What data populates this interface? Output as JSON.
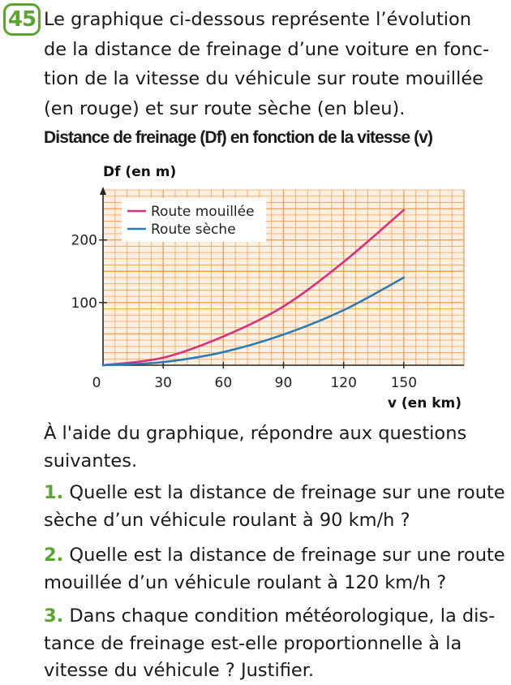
{
  "exercise": {
    "number": "45",
    "intro_lines": [
      "Le graphique ci-dessous représente l’évolution",
      "de la distance de freinage d’une voiture en fonc-",
      "tion de la vitesse du véhicule sur route mouillée",
      "(en rouge) et sur route sèche (en bleu)."
    ],
    "chart_title": "Distance de freinage (Df) en fonction de la vitesse (v)",
    "instruction_lines": [
      "À l'aide du graphique, répondre aux questions",
      "suivantes."
    ],
    "questions": [
      {
        "num": "1.",
        "lines": [
          "Quelle est la distance de freinage sur une route",
          "sèche d’un véhicule roulant à 90 km/h ?"
        ]
      },
      {
        "num": "2.",
        "lines": [
          "Quelle est la distance de freinage sur une route",
          "mouillée d’un véhicule roulant à 120 km/h ?"
        ]
      },
      {
        "num": "3.",
        "lines": [
          "Dans chaque condition météorologique, la dis-",
          "tance de freinage est-elle proportionnelle à la",
          "vitesse du véhicule ? Justifier."
        ]
      }
    ]
  },
  "chart_data": {
    "type": "line",
    "title": "Distance de freinage (Df) en fonction de la vitesse (v)",
    "ylabel": "Df (en m)",
    "xlabel": "v (en km)",
    "xlim": [
      0,
      180
    ],
    "ylim": [
      0,
      280
    ],
    "x_ticks": [
      "0",
      "30",
      "60",
      "90",
      "120",
      "150"
    ],
    "y_ticks": [
      "100",
      "200"
    ],
    "grid": true,
    "legend_position": "top-left",
    "x": [
      0,
      30,
      60,
      90,
      120,
      150
    ],
    "series": [
      {
        "name": "Route mouillée",
        "color": "#d6307e",
        "values": [
          0,
          12,
          46,
          94,
          165,
          248
        ]
      },
      {
        "name": "Route sèche",
        "color": "#2a7bb5",
        "values": [
          0,
          5,
          21,
          49,
          88,
          140
        ]
      }
    ],
    "grid_color": "#f5a055",
    "plot_bg": "#fdf0e2"
  }
}
